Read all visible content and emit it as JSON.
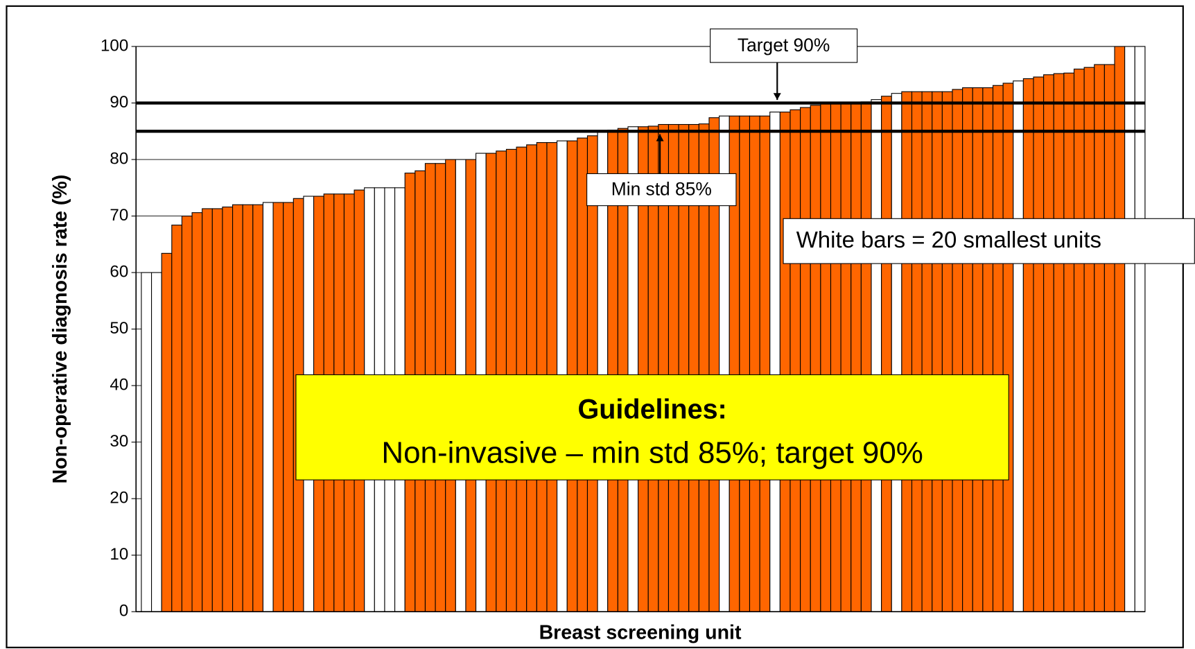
{
  "chart_data": {
    "type": "bar",
    "xlabel": "Breast screening unit",
    "ylabel": "Non-operative diagnosis rate (%)",
    "ylim": [
      0,
      100
    ],
    "yticks": [
      0,
      10,
      20,
      30,
      40,
      50,
      60,
      70,
      80,
      90,
      100
    ],
    "grid": true,
    "values": [
      60,
      60,
      63.4,
      68.4,
      70,
      70.6,
      71.3,
      71.3,
      71.6,
      72,
      72,
      72,
      72.4,
      72.4,
      72.4,
      73.1,
      73.5,
      73.5,
      73.9,
      73.9,
      73.9,
      74.6,
      75,
      75,
      75,
      75,
      77.6,
      78,
      79.3,
      79.3,
      80,
      80,
      80,
      81.1,
      81.1,
      81.5,
      81.8,
      82.2,
      82.6,
      83,
      83,
      83.3,
      83.3,
      83.8,
      84.2,
      85,
      85.2,
      85.5,
      85.8,
      85.8,
      85.9,
      86.2,
      86.2,
      86.2,
      86.2,
      86.3,
      87.4,
      87.7,
      87.7,
      87.7,
      87.7,
      87.7,
      88.4,
      88.4,
      88.8,
      89.2,
      89.6,
      89.9,
      90,
      90,
      90,
      90.2,
      90.6,
      91.2,
      91.7,
      92,
      92,
      92,
      92,
      92,
      92.4,
      92.7,
      92.7,
      92.7,
      93.1,
      93.5,
      93.9,
      94.3,
      94.6,
      95,
      95.2,
      95.3,
      96,
      96.3,
      96.8,
      96.8,
      100,
      100,
      100
    ],
    "colors": [
      "#ffffff",
      "#ffffff",
      "#ff6600",
      "#ff6600",
      "#ff6600",
      "#ff6600",
      "#ff6600",
      "#ff6600",
      "#ff6600",
      "#ff6600",
      "#ff6600",
      "#ff6600",
      "#ffffff",
      "#ff6600",
      "#ff6600",
      "#ff6600",
      "#ffffff",
      "#ff6600",
      "#ff6600",
      "#ff6600",
      "#ff6600",
      "#ff6600",
      "#ffffff",
      "#ffffff",
      "#ffffff",
      "#ffffff",
      "#ff6600",
      "#ff6600",
      "#ff6600",
      "#ff6600",
      "#ff6600",
      "#ffffff",
      "#ff6600",
      "#ffffff",
      "#ff6600",
      "#ff6600",
      "#ff6600",
      "#ff6600",
      "#ff6600",
      "#ff6600",
      "#ff6600",
      "#ffffff",
      "#ff6600",
      "#ff6600",
      "#ff6600",
      "#ffffff",
      "#ff6600",
      "#ff6600",
      "#ffffff",
      "#ff6600",
      "#ff6600",
      "#ff6600",
      "#ff6600",
      "#ff6600",
      "#ff6600",
      "#ff6600",
      "#ff6600",
      "#ffffff",
      "#ff6600",
      "#ff6600",
      "#ff6600",
      "#ff6600",
      "#ffffff",
      "#ff6600",
      "#ff6600",
      "#ff6600",
      "#ff6600",
      "#ff6600",
      "#ff6600",
      "#ff6600",
      "#ff6600",
      "#ff6600",
      "#ffffff",
      "#ff6600",
      "#ffffff",
      "#ff6600",
      "#ff6600",
      "#ff6600",
      "#ff6600",
      "#ff6600",
      "#ff6600",
      "#ff6600",
      "#ff6600",
      "#ff6600",
      "#ff6600",
      "#ff6600",
      "#ffffff",
      "#ff6600",
      "#ff6600",
      "#ff6600",
      "#ff6600",
      "#ff6600",
      "#ff6600",
      "#ff6600",
      "#ff6600",
      "#ff6600",
      "#ff6600",
      "#ffffff",
      "#ffffff"
    ],
    "reference_lines": [
      {
        "value": 90,
        "label": "Target 90%"
      },
      {
        "value": 85,
        "label": "Min std 85%"
      }
    ],
    "annotations": [
      "White bars = 20 smallest units",
      "Guidelines:",
      "Non-invasive – min std 85%; target 90%"
    ]
  }
}
